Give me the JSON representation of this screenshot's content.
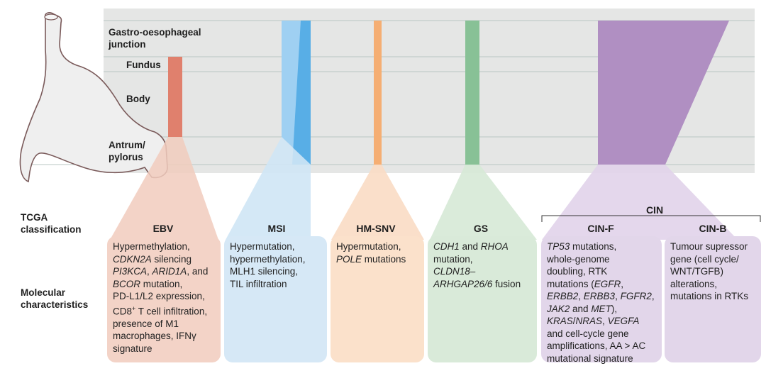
{
  "regions": {
    "gej_line1": "Gastro-oesophageal",
    "gej_line2": "junction",
    "fundus": "Fundus",
    "body": "Body",
    "antrum_line1": "Antrum/",
    "antrum_line2": "pylorus"
  },
  "row_labels": {
    "tcga_line1": "TCGA",
    "tcga_line2": "classification",
    "mol_line1": "Molecular",
    "mol_line2": "characteristics"
  },
  "cin_group": "CIN",
  "subtypes": [
    {
      "name": "EBV",
      "color": "#e8a08f",
      "box_color": "#f3d3c7"
    },
    {
      "name": "MSI",
      "color": "#6fb8e8",
      "box_color": "#d6e8f6"
    },
    {
      "name": "HM-SNV",
      "color": "#f5b87f",
      "box_color": "#fbe1cb"
    },
    {
      "name": "GS",
      "color": "#8fc59b",
      "box_color": "#d9ead9"
    },
    {
      "name": "CIN-F",
      "color": "#b590c4",
      "box_color": "#e2d6ea"
    },
    {
      "name": "CIN-B",
      "color": "#b590c4",
      "box_color": "#e2d6ea"
    }
  ],
  "characteristics": {
    "ebv": {
      "l1": "Hypermethylation,",
      "l2a": "CDKN2A",
      "l2b": " silencing",
      "l3a": "PI3KCA",
      "l3b": ", ",
      "l3c": "ARID1A",
      "l3d": ", and",
      "l4a": "BCOR",
      "l4b": " mutation,",
      "l5": "PD-L1/L2 expression,",
      "l6a": "CD8",
      "l6sup": "+",
      "l6b": " T cell infiltration,",
      "l7": "presence of M1",
      "l8": "macrophages, IFNγ",
      "l9": "signature"
    },
    "msi": {
      "l1": "Hypermutation,",
      "l2": "hypermethylation,",
      "l3": "MLH1 silencing,",
      "l4": "TIL infiltration"
    },
    "hmsnv": {
      "l1": "Hypermutation,",
      "l2a": "POLE",
      "l2b": " mutations"
    },
    "gs": {
      "l1a": "CDH1",
      "l1b": " and ",
      "l1c": "RHOA",
      "l2": "mutation,",
      "l3": "CLDN18–",
      "l4a": "ARHGAP26/6",
      "l4b": " fusion"
    },
    "cinf": {
      "l1a": "TP53",
      "l1b": " mutations,",
      "l2": "whole-genome",
      "l3": "doubling, RTK",
      "l4a": "mutations (",
      "l4b": "EGFR",
      "l4c": ",",
      "l5a": "ERBB2",
      "l5b": ", ",
      "l5c": "ERBB3",
      "l5d": ", ",
      "l5e": "FGFR2",
      "l5f": ",",
      "l6a": "JAK2",
      "l6b": " and ",
      "l6c": "MET",
      "l6d": "),",
      "l7a": "KRAS",
      "l7b": "/",
      "l7c": "NRAS",
      "l7d": ", ",
      "l7e": "VEGFA",
      "l8": "and cell-cycle gene",
      "l9": "amplifications, AA > AC",
      "l10": "mutational signature"
    },
    "cinb": {
      "l1": "Tumour supressor",
      "l2": "gene (cell cycle/",
      "l3": "WNT/TGFB)",
      "l4": "alterations,",
      "l5": "mutations in RTKs"
    }
  }
}
